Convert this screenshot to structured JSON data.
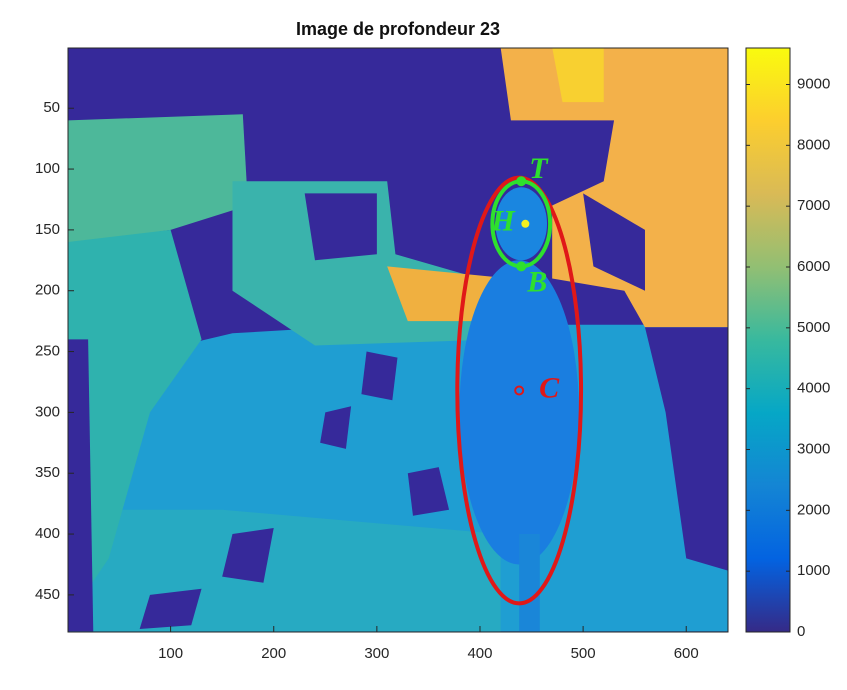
{
  "chart_data": {
    "type": "image",
    "title": "Image de profondeur 23",
    "xlim": [
      0.5,
      640.5
    ],
    "ylim": [
      0.5,
      480.5
    ],
    "y_reversed": true,
    "xticks": [
      100,
      200,
      300,
      400,
      500,
      600
    ],
    "yticks": [
      50,
      100,
      150,
      200,
      250,
      300,
      350,
      400,
      450
    ],
    "colorbar": {
      "clim": [
        0,
        9600
      ],
      "ticks": [
        0,
        1000,
        2000,
        3000,
        4000,
        5000,
        6000,
        7000,
        8000,
        9000
      ],
      "colormap": "parula"
    },
    "ellipses": [
      {
        "cx": 438,
        "cy": 282,
        "rx": 60,
        "ry": 175,
        "color": "#e01818"
      },
      {
        "cx": 440,
        "cy": 145,
        "rx": 28,
        "ry": 35,
        "color": "#2ee02e"
      }
    ],
    "points": [
      {
        "label": "T",
        "x": 440,
        "y": 110,
        "color": "#2ee02e"
      },
      {
        "label": "H",
        "x": 444,
        "y": 145,
        "color": "#2ee02e"
      },
      {
        "label": "B",
        "x": 440,
        "y": 180,
        "color": "#2ee02e"
      },
      {
        "label": "C",
        "x": 438,
        "y": 282,
        "color": "#e01818"
      }
    ]
  }
}
